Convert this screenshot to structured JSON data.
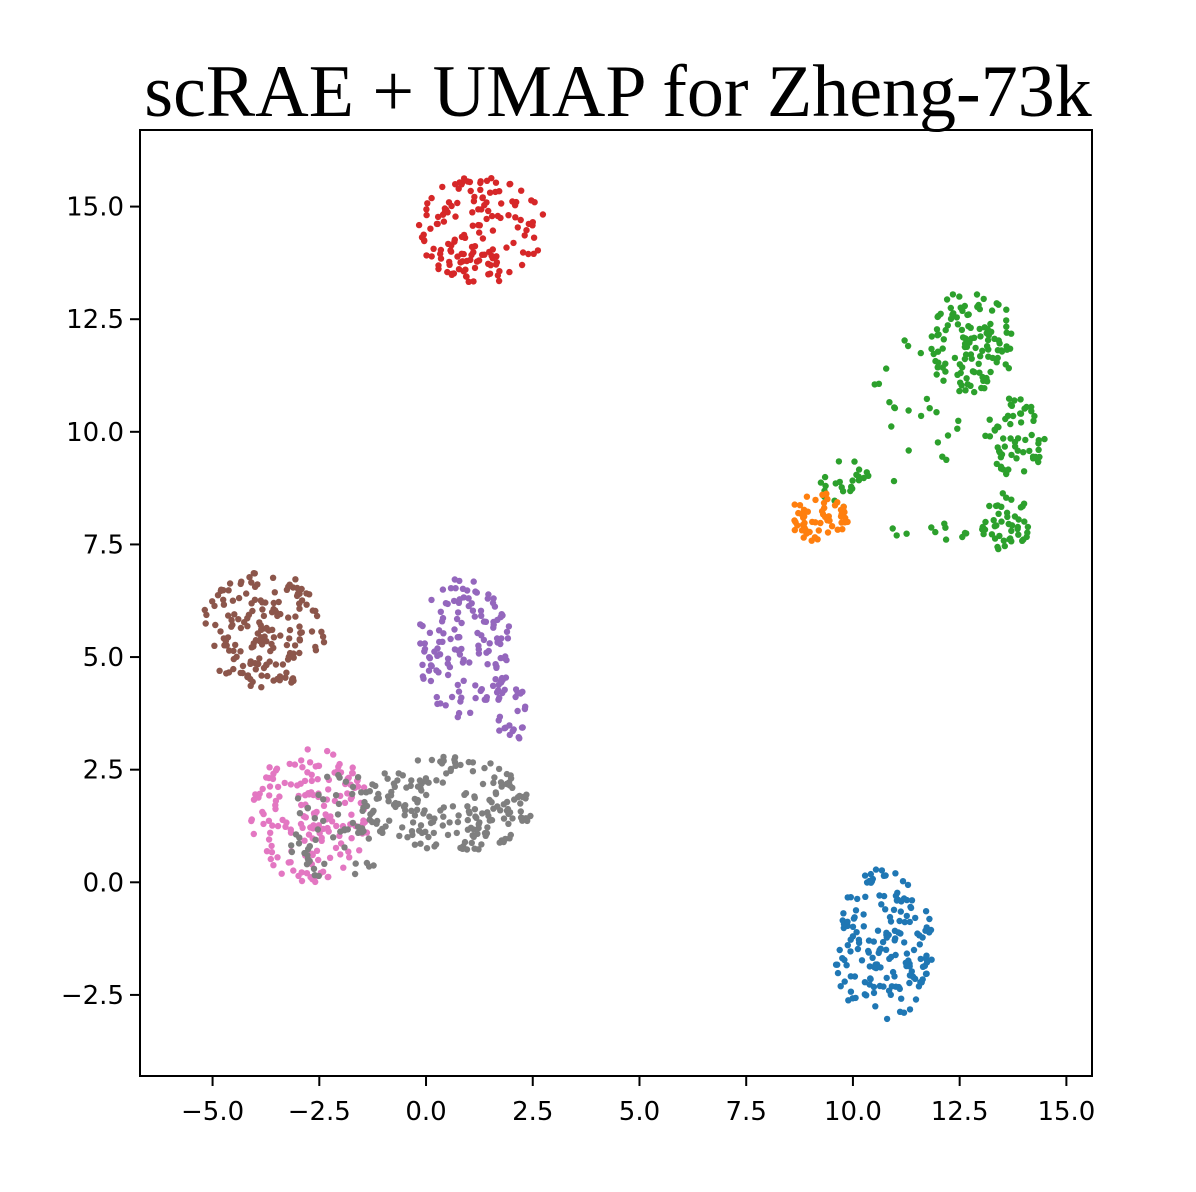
{
  "chart_data": {
    "type": "scatter",
    "title": "scRAE + UMAP for Zheng-73k",
    "xlabel": "",
    "ylabel": "",
    "xlim": [
      -6.7,
      15.6
    ],
    "ylim": [
      -4.3,
      16.7
    ],
    "xticks": [
      -5.0,
      -2.5,
      0.0,
      2.5,
      5.0,
      7.5,
      10.0,
      12.5,
      15.0
    ],
    "yticks": [
      -2.5,
      0.0,
      2.5,
      5.0,
      7.5,
      10.0,
      12.5,
      15.0
    ],
    "xtick_labels": [
      "−5.0",
      "−2.5",
      "0.0",
      "2.5",
      "5.0",
      "7.5",
      "10.0",
      "12.5",
      "15.0"
    ],
    "ytick_labels": [
      "−2.5",
      "0.0",
      "2.5",
      "5.0",
      "7.5",
      "10.0",
      "12.5",
      "15.0"
    ],
    "grid": false,
    "legend": "none",
    "series": [
      {
        "color": "#d62728",
        "clusters": [
          {
            "cx": 1.3,
            "cy": 14.5,
            "rx": 1.5,
            "ry": 1.2,
            "n": 150
          }
        ]
      },
      {
        "color": "#2ca02c",
        "clusters": [
          {
            "cx": 12.8,
            "cy": 12.0,
            "rx": 1.0,
            "ry": 1.2,
            "n": 110
          },
          {
            "cx": 13.8,
            "cy": 9.9,
            "rx": 0.7,
            "ry": 0.9,
            "n": 60
          },
          {
            "cx": 13.6,
            "cy": 8.0,
            "rx": 0.6,
            "ry": 0.7,
            "n": 45
          },
          {
            "cx": 9.8,
            "cy": 8.9,
            "rx": 0.6,
            "ry": 0.6,
            "n": 25
          },
          {
            "cx": 11.6,
            "cy": 10.4,
            "rx": 1.4,
            "ry": 1.8,
            "n": 30
          },
          {
            "cx": 12.0,
            "cy": 7.8,
            "rx": 1.3,
            "ry": 0.2,
            "n": 12
          }
        ]
      },
      {
        "color": "#ff7f0e",
        "clusters": [
          {
            "cx": 9.2,
            "cy": 8.1,
            "rx": 0.7,
            "ry": 0.55,
            "n": 60
          }
        ]
      },
      {
        "color": "#1f77b4",
        "clusters": [
          {
            "cx": 10.7,
            "cy": -1.4,
            "rx": 1.2,
            "ry": 1.7,
            "n": 170
          }
        ]
      },
      {
        "color": "#8c564b",
        "clusters": [
          {
            "cx": -3.8,
            "cy": 5.6,
            "rx": 1.5,
            "ry": 1.3,
            "n": 170
          }
        ]
      },
      {
        "color": "#9467bd",
        "clusters": [
          {
            "cx": 0.9,
            "cy": 5.2,
            "rx": 1.1,
            "ry": 1.6,
            "n": 140
          },
          {
            "cx": 2.0,
            "cy": 3.8,
            "rx": 0.4,
            "ry": 0.7,
            "n": 25
          }
        ]
      },
      {
        "color": "#e377c2",
        "clusters": [
          {
            "cx": -2.7,
            "cy": 1.5,
            "rx": 1.4,
            "ry": 1.5,
            "n": 170
          }
        ]
      },
      {
        "color": "#7f7f7f",
        "clusters": [
          {
            "cx": 0.5,
            "cy": 1.7,
            "rx": 2.0,
            "ry": 1.1,
            "n": 200
          },
          {
            "cx": -2.0,
            "cy": 1.2,
            "rx": 1.3,
            "ry": 1.2,
            "n": 60
          }
        ]
      }
    ]
  }
}
